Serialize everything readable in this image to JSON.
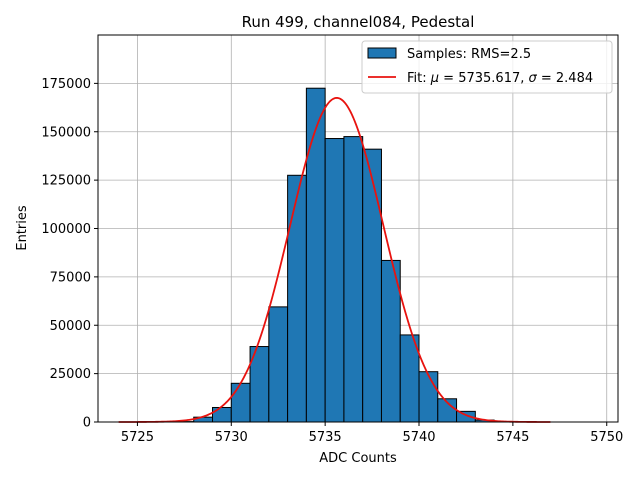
{
  "chart_data": {
    "type": "bar",
    "title": "Run 499, channel084, Pedestal",
    "xlabel": "ADC Counts",
    "ylabel": "Entries",
    "xlim": [
      5722.9,
      5750.6
    ],
    "ylim": [
      0,
      200000
    ],
    "xticks": [
      5725,
      5730,
      5735,
      5740,
      5745,
      5750
    ],
    "yticks": [
      0,
      25000,
      50000,
      75000,
      100000,
      125000,
      150000,
      175000
    ],
    "grid": true,
    "legend_position": "top-right",
    "histogram": {
      "name": "Samples: RMS=2.5",
      "color": "#1f77b4",
      "edge_color": "#000000",
      "bin_edges": [
        5727,
        5728,
        5729,
        5730,
        5731,
        5732,
        5733,
        5734,
        5735,
        5736,
        5737,
        5738,
        5739,
        5740,
        5741,
        5742,
        5743,
        5744
      ],
      "values": [
        200,
        2500,
        7500,
        20000,
        39000,
        59500,
        127500,
        172500,
        146500,
        147500,
        141000,
        83500,
        45000,
        26000,
        12000,
        5500,
        1000
      ]
    },
    "fit": {
      "name_prefix": "Fit: ",
      "mu_symbol": "μ",
      "sigma_symbol": "σ",
      "mu": 5735.617,
      "sigma": 2.484,
      "amplitude": 167500,
      "x_range": [
        5724,
        5747
      ],
      "color": "#e8130f"
    }
  }
}
